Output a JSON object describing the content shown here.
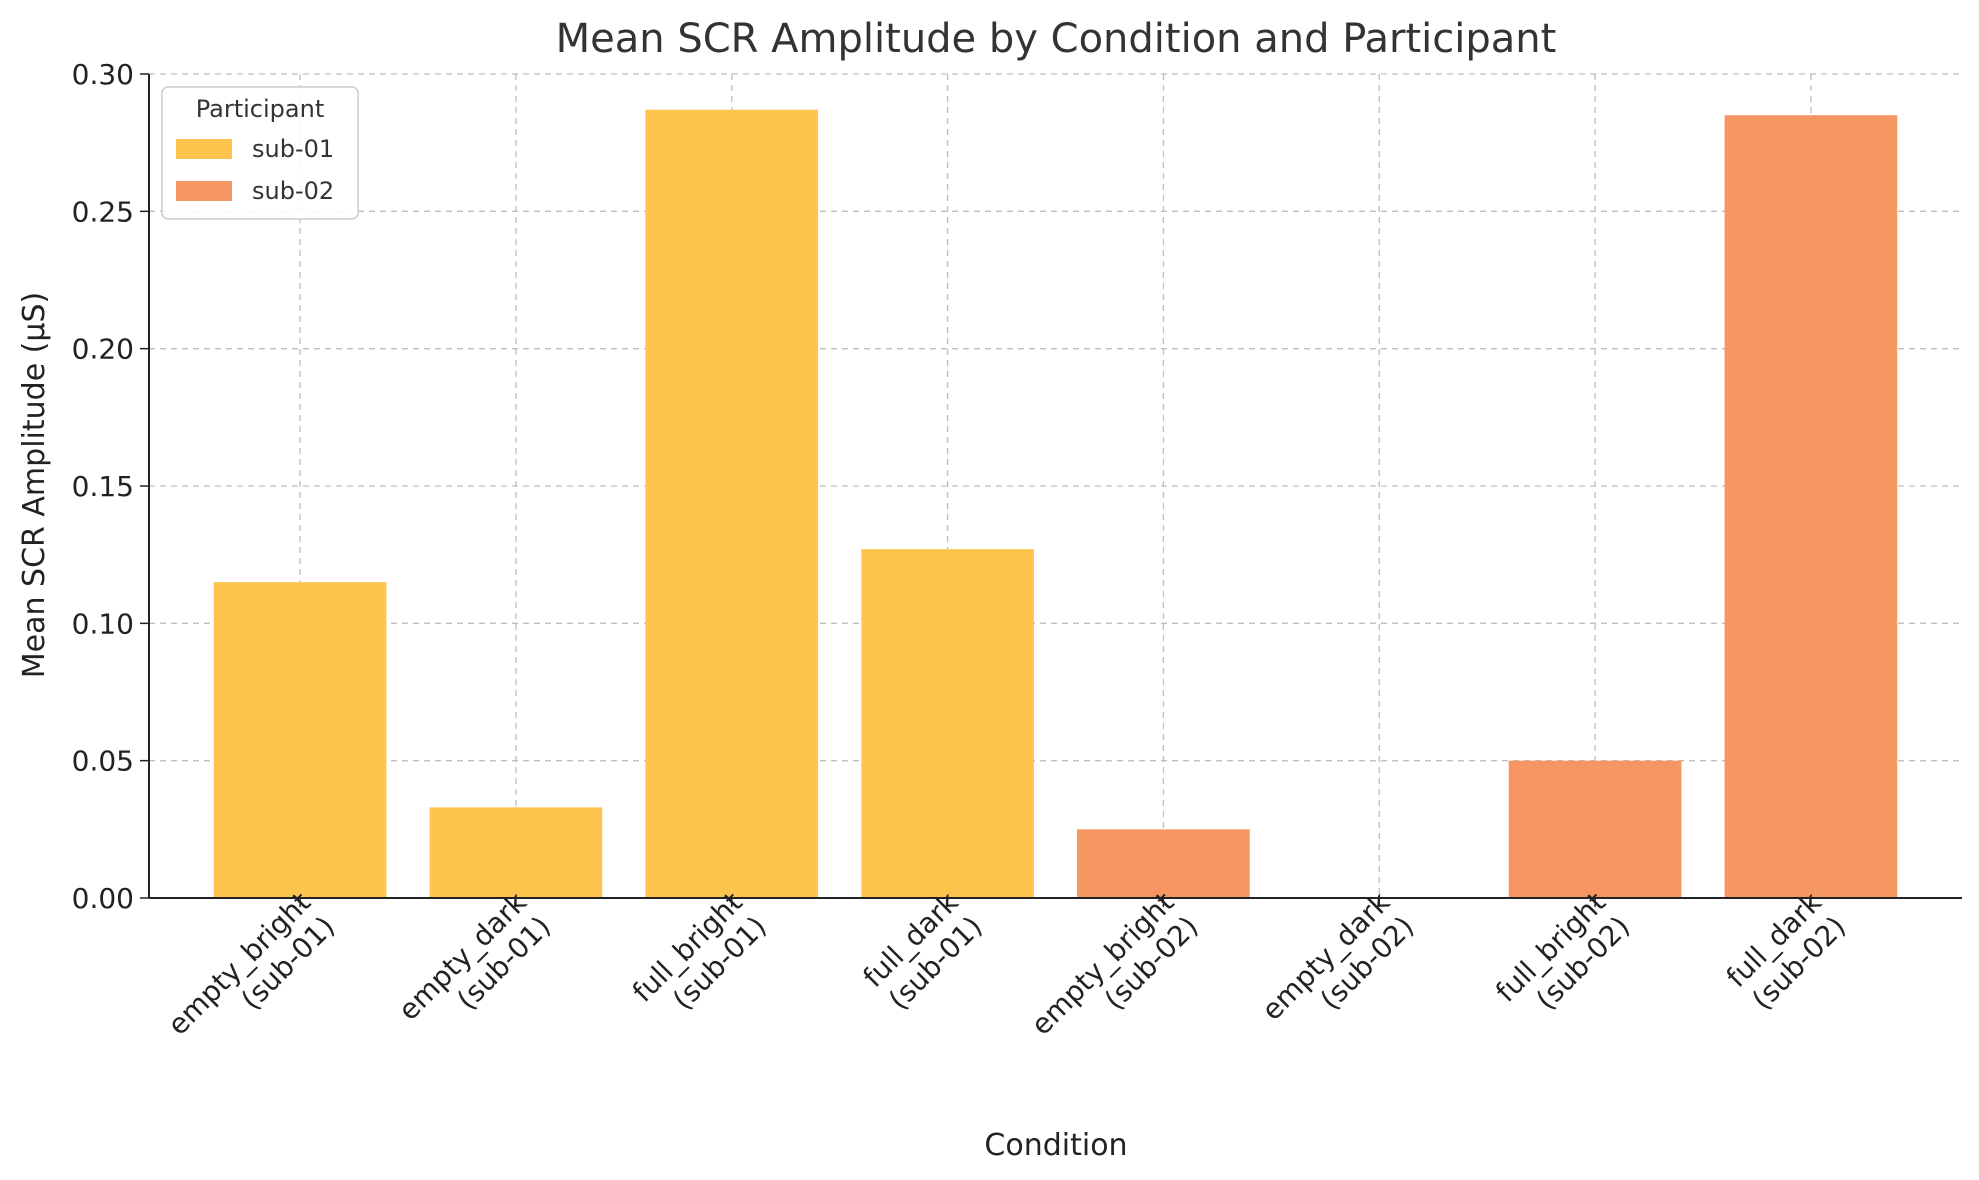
{
  "chart_data": {
    "type": "bar",
    "title": "Mean SCR Amplitude by Condition and Participant",
    "xlabel": "Condition",
    "ylabel": "Mean SCR Amplitude (µS)",
    "ylim": [
      0,
      0.3
    ],
    "yticks": [
      "0.00",
      "0.05",
      "0.10",
      "0.15",
      "0.20",
      "0.25",
      "0.30"
    ],
    "grid": true,
    "legend": {
      "title": "Participant",
      "position": "top-left"
    },
    "categories": [
      [
        "empty_bright",
        "(sub-01)"
      ],
      [
        "empty_dark",
        "(sub-01)"
      ],
      [
        "full_bright",
        "(sub-01)"
      ],
      [
        "full_dark",
        "(sub-01)"
      ],
      [
        "empty_bright",
        "(sub-02)"
      ],
      [
        "empty_dark",
        "(sub-02)"
      ],
      [
        "full_bright",
        "(sub-02)"
      ],
      [
        "full_dark",
        "(sub-02)"
      ]
    ],
    "series": [
      {
        "name": "sub-01",
        "color": "#FDC54E",
        "values": [
          0.115,
          0.033,
          0.287,
          0.127,
          null,
          null,
          null,
          null
        ]
      },
      {
        "name": "sub-02",
        "color": "#F59663",
        "values": [
          null,
          null,
          null,
          null,
          0.025,
          0.0,
          0.05,
          0.285
        ]
      }
    ]
  }
}
